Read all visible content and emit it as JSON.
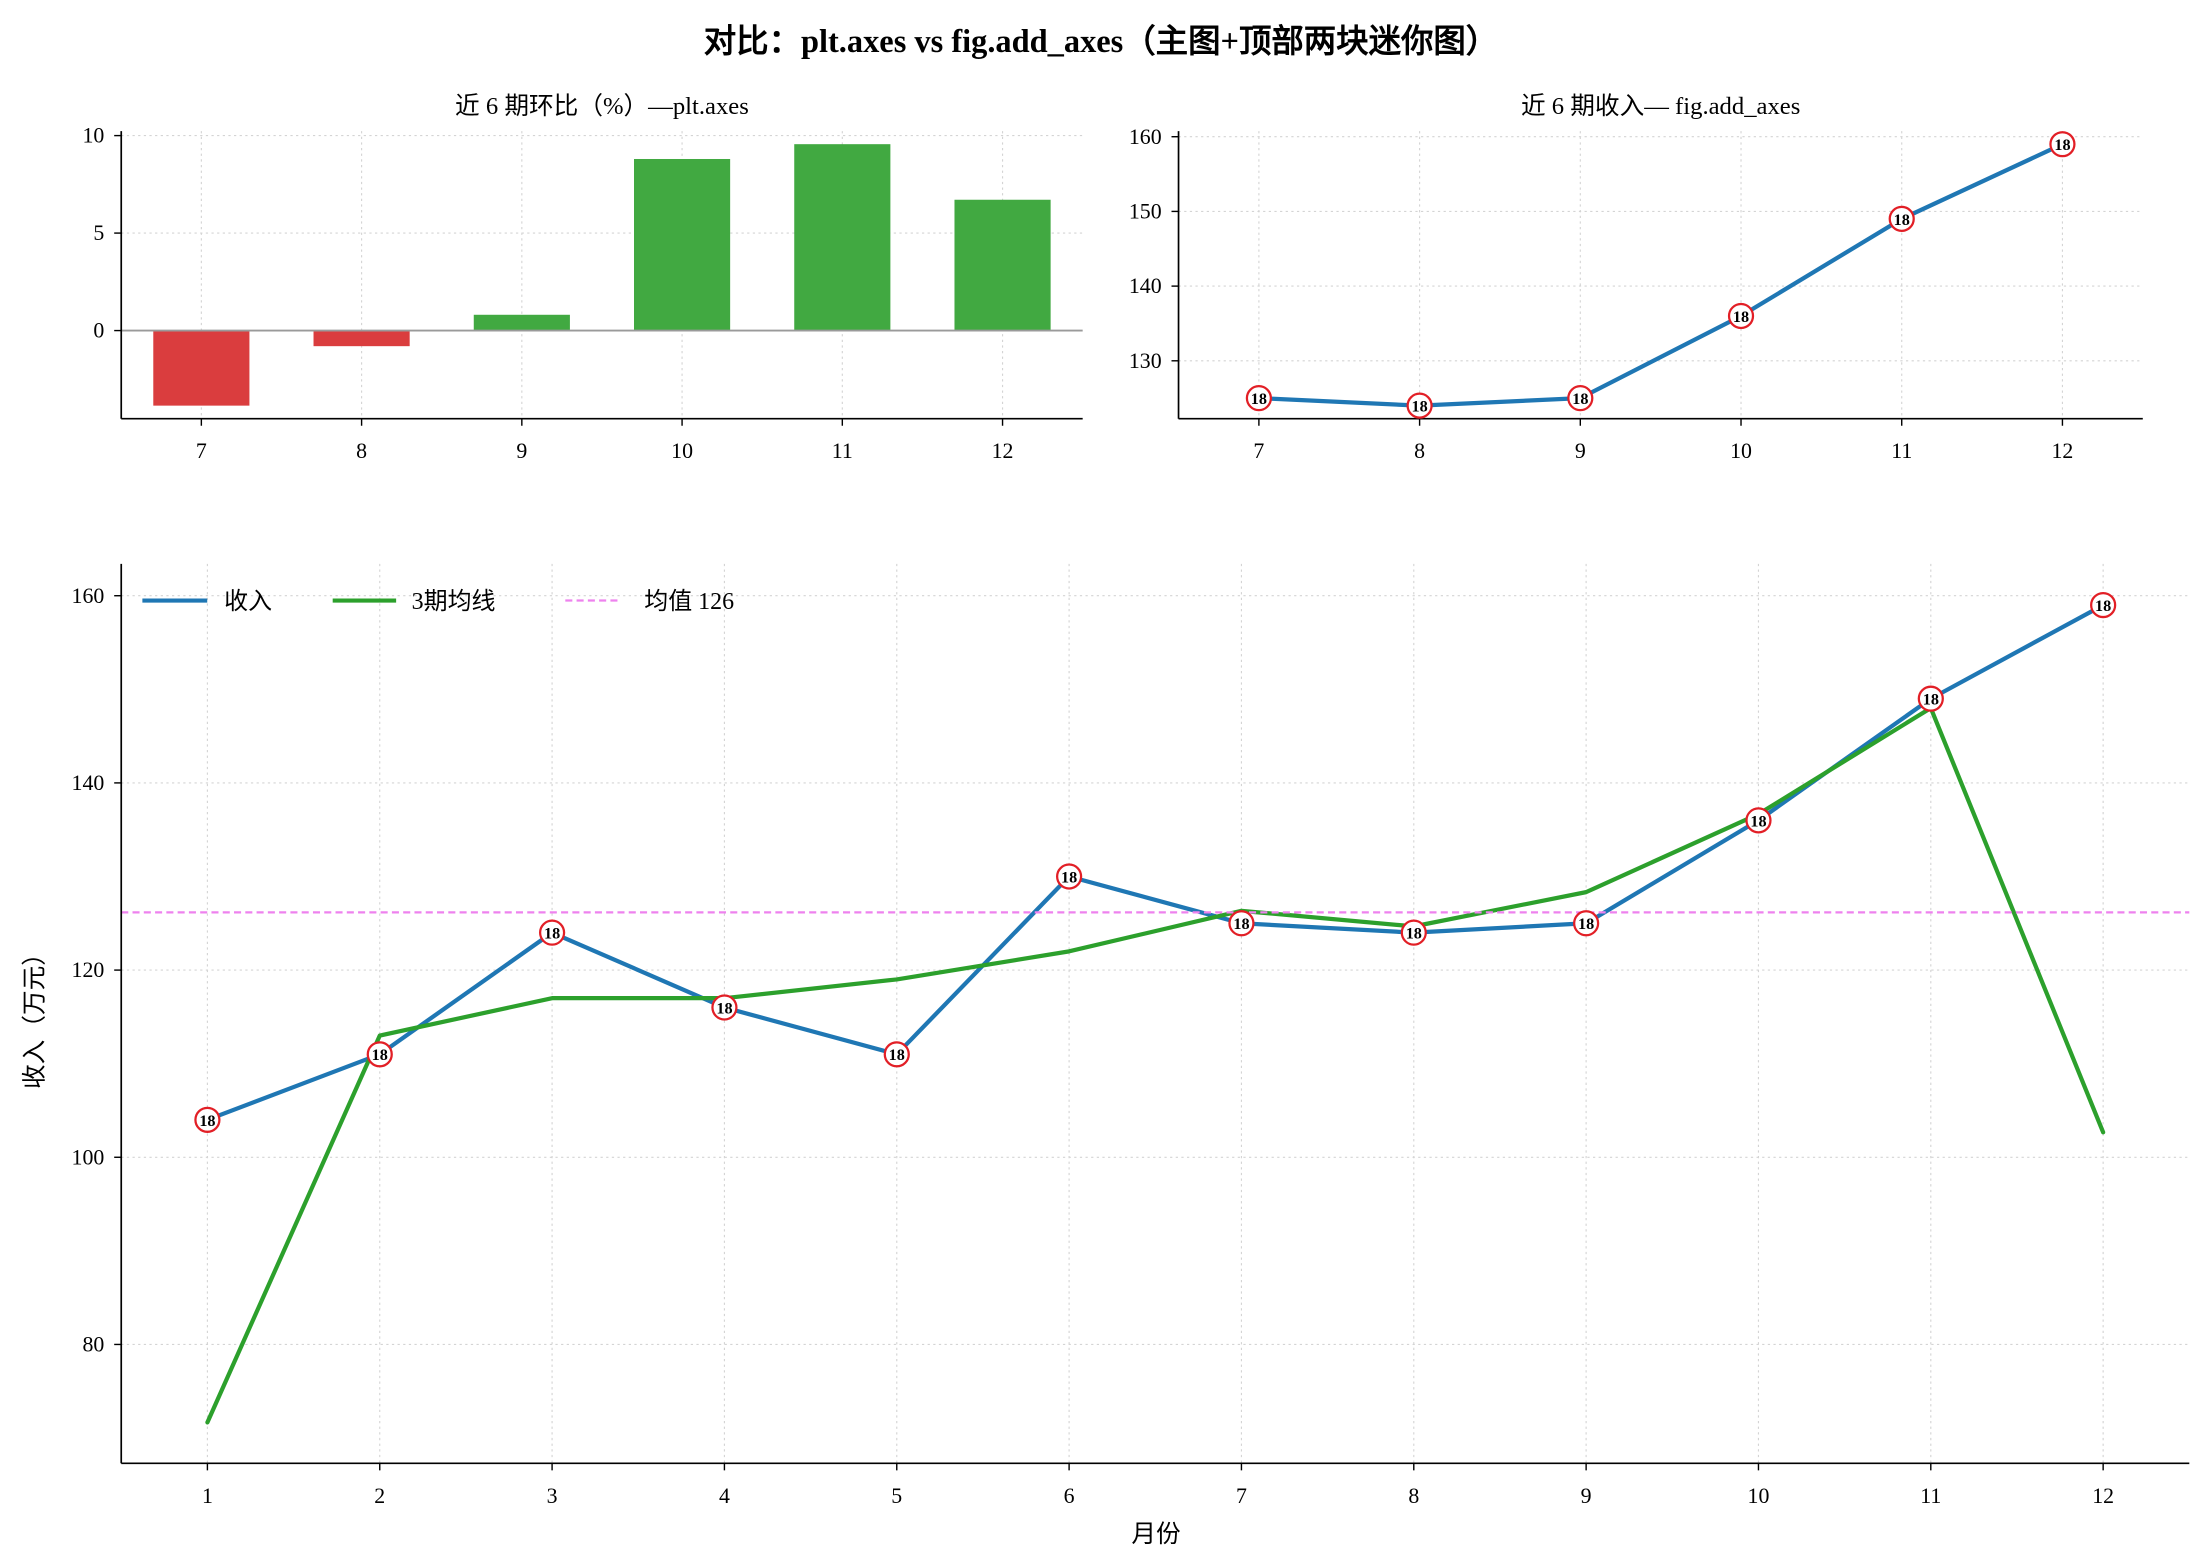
{
  "figure": {
    "title": "对比：plt.axes vs fig.add_axes（主图+顶部两块迷你图）"
  },
  "chart_data": [
    {
      "type": "bar",
      "title": "近 6 期环比（%）—plt.axes",
      "categories": [
        7,
        8,
        9,
        10,
        11,
        12
      ],
      "values": [
        -3.85,
        -0.8,
        0.81,
        8.8,
        9.56,
        6.71
      ],
      "xlim": [
        6.5,
        12.5
      ],
      "ylim": [
        -4.52,
        10.23
      ],
      "xticks": [
        7,
        8,
        9,
        10,
        11,
        12
      ],
      "yticks": [
        0,
        5,
        10
      ],
      "zero_line": 0,
      "grid": true,
      "colors": {
        "positive": "#41a941",
        "negative": "#da3d3e",
        "zero_line": "#9a9a9a"
      }
    },
    {
      "type": "line",
      "title": "近 6 期收入— fig.add_axes",
      "x": [
        7,
        8,
        9,
        10,
        11,
        12
      ],
      "series": [
        {
          "values": [
            125,
            124,
            125,
            136,
            149,
            159
          ],
          "color": "#1f77b4",
          "marker_text": "18",
          "marker_color": "#e21f26"
        }
      ],
      "xlim": [
        6.5,
        12.5
      ],
      "ylim": [
        122.25,
        160.75
      ],
      "xticks": [
        7,
        8,
        9,
        10,
        11,
        12
      ],
      "yticks": [
        130,
        140,
        150,
        160
      ],
      "grid": true
    },
    {
      "type": "line",
      "xlabel": "月份",
      "ylabel": "收入（万元）",
      "x": [
        1,
        2,
        3,
        4,
        5,
        6,
        7,
        8,
        9,
        10,
        11,
        12
      ],
      "series": [
        {
          "name": "收入",
          "values": [
            104,
            111,
            124,
            116,
            111,
            130,
            125,
            124,
            125,
            136,
            149,
            159
          ],
          "color": "#1f77b4",
          "marker_text": "18",
          "marker_color": "#e21f26"
        },
        {
          "name": "3期均线",
          "values": [
            71.67,
            113,
            117,
            117,
            119,
            122,
            126.33,
            124.67,
            128.33,
            136.67,
            148,
            102.67
          ],
          "color": "#2ca02c"
        }
      ],
      "reference_line": {
        "name": "均值 126",
        "value": 126.17,
        "color": "#ee82ee",
        "style": "dashed"
      },
      "xlim": [
        0.5,
        12.5
      ],
      "ylim": [
        67.3,
        163.4
      ],
      "xticks": [
        1,
        2,
        3,
        4,
        5,
        6,
        7,
        8,
        9,
        10,
        11,
        12
      ],
      "yticks": [
        80,
        100,
        120,
        140,
        160
      ],
      "legend": "upper-left",
      "grid": true
    }
  ]
}
